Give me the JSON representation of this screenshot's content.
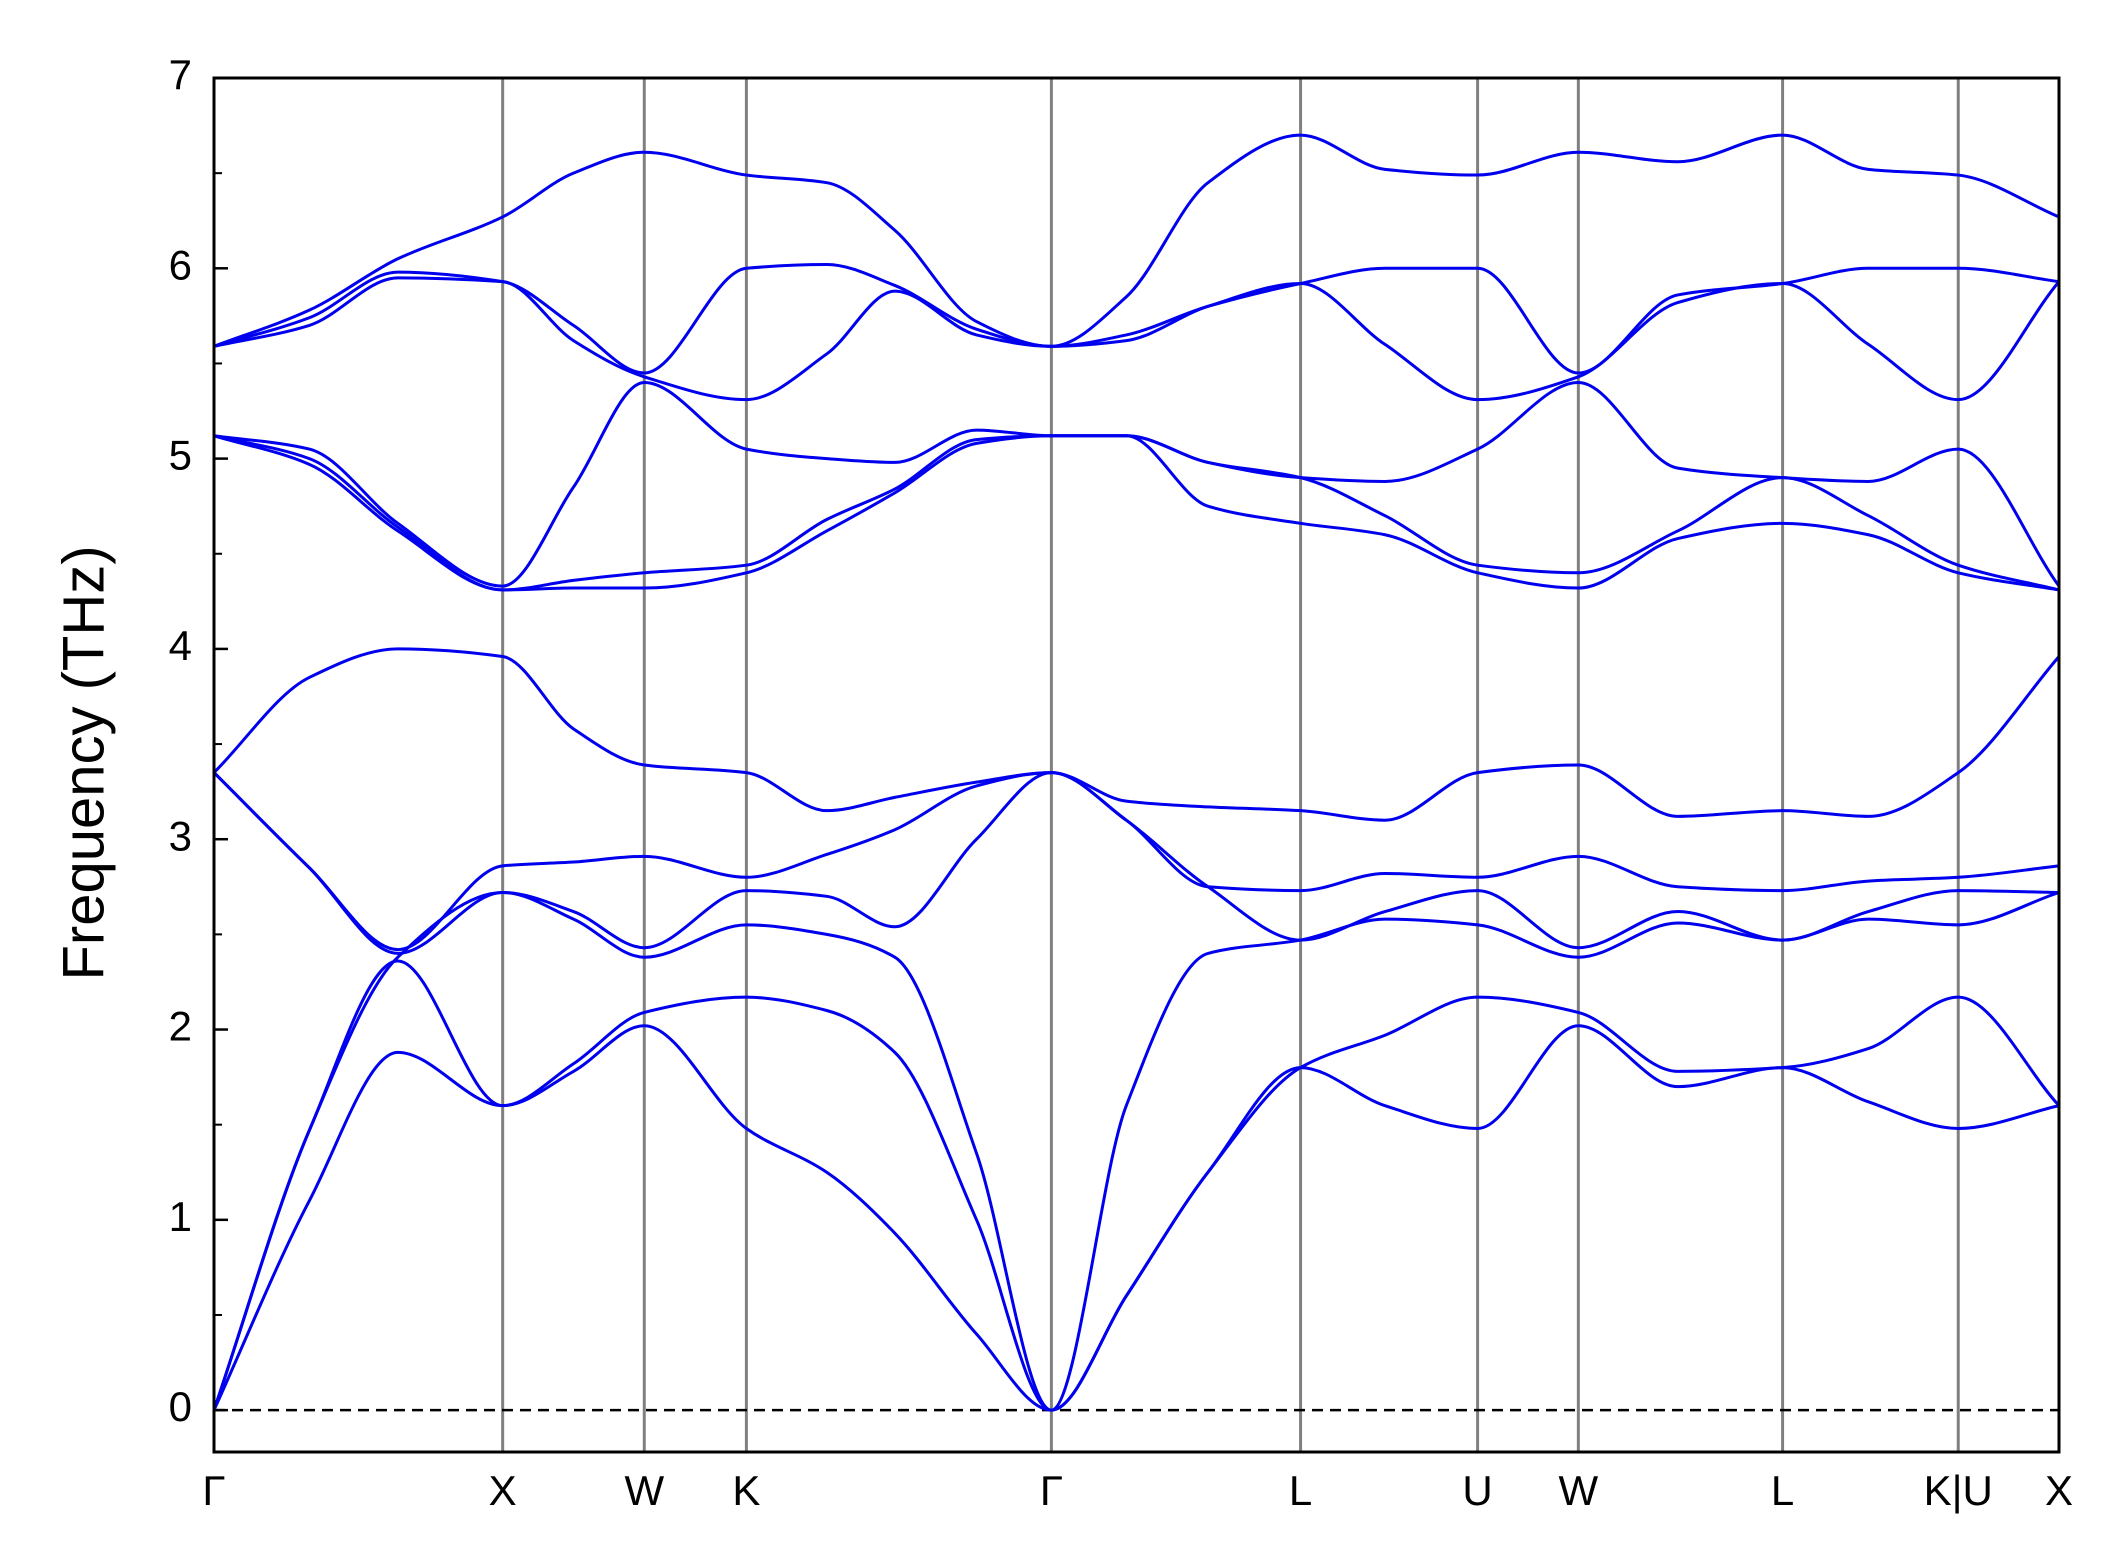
{
  "chart_data": {
    "type": "line",
    "ylabel": "Frequency (THz)",
    "color": "#0000ee",
    "kline_color": "#808080",
    "hline": 0,
    "xlim": [
      0,
      13.55
    ],
    "ylim": [
      -0.22,
      7
    ],
    "yticks": [
      0,
      1,
      2,
      3,
      4,
      5,
      6,
      7
    ],
    "yticks_minor": [
      0.5,
      1.5,
      2.5,
      3.5,
      4.5,
      5.5,
      6.5
    ],
    "xticks": [
      {
        "value": 0,
        "label": "Γ"
      },
      {
        "value": 2.12,
        "label": "X"
      },
      {
        "value": 3.16,
        "label": "W"
      },
      {
        "value": 3.91,
        "label": "K"
      },
      {
        "value": 6.15,
        "label": "Γ"
      },
      {
        "value": 7.98,
        "label": "L"
      },
      {
        "value": 9.28,
        "label": "U"
      },
      {
        "value": 10.02,
        "label": "W"
      },
      {
        "value": 11.52,
        "label": "L"
      },
      {
        "value": 12.81,
        "label": "K|U"
      },
      {
        "value": 13.55,
        "label": "X"
      }
    ],
    "x": [
      0,
      0.7,
      1.35,
      2.12,
      2.64,
      3.16,
      3.91,
      4.5,
      5.0,
      5.6,
      6.15,
      6.7,
      7.3,
      7.98,
      8.6,
      9.28,
      10.02,
      10.75,
      11.52,
      12.15,
      12.81,
      13.55
    ],
    "series": [
      {
        "values": [
          0,
          1.1,
          1.88,
          1.6,
          1.78,
          2.02,
          1.48,
          1.25,
          0.93,
          0.4,
          0,
          0.6,
          1.25,
          1.8,
          1.6,
          1.48,
          2.02,
          1.7,
          1.8,
          1.62,
          1.48,
          1.6
        ]
      },
      {
        "values": [
          0,
          1.47,
          2.36,
          1.6,
          1.82,
          2.09,
          2.17,
          2.1,
          1.88,
          1.0,
          0,
          0.6,
          1.25,
          1.8,
          1.97,
          2.17,
          2.09,
          1.78,
          1.8,
          1.9,
          2.17,
          1.6
        ]
      },
      {
        "values": [
          0,
          1.47,
          2.38,
          2.72,
          2.58,
          2.38,
          2.55,
          2.5,
          2.38,
          1.35,
          0,
          1.6,
          2.4,
          2.47,
          2.58,
          2.55,
          2.38,
          2.56,
          2.47,
          2.58,
          2.55,
          2.72
        ]
      },
      {
        "values": [
          3.35,
          2.85,
          2.4,
          2.72,
          2.62,
          2.43,
          2.73,
          2.7,
          2.54,
          3.0,
          3.35,
          3.1,
          2.75,
          2.47,
          2.62,
          2.73,
          2.43,
          2.62,
          2.47,
          2.62,
          2.73,
          2.72
        ]
      },
      {
        "values": [
          3.35,
          2.85,
          2.42,
          2.86,
          2.88,
          2.91,
          2.8,
          2.92,
          3.05,
          3.28,
          3.35,
          3.1,
          2.75,
          2.73,
          2.82,
          2.8,
          2.91,
          2.75,
          2.73,
          2.78,
          2.8,
          2.86
        ]
      },
      {
        "values": [
          3.35,
          3.85,
          4.0,
          3.96,
          3.58,
          3.39,
          3.35,
          3.15,
          3.22,
          3.3,
          3.35,
          3.2,
          3.17,
          3.15,
          3.1,
          3.35,
          3.39,
          3.12,
          3.15,
          3.12,
          3.35,
          3.96
        ]
      },
      {
        "values": [
          5.12,
          4.97,
          4.62,
          4.31,
          4.32,
          4.32,
          4.4,
          4.62,
          4.82,
          5.08,
          5.12,
          5.12,
          4.75,
          4.66,
          4.6,
          4.4,
          4.32,
          4.58,
          4.66,
          4.6,
          4.4,
          4.31
        ]
      },
      {
        "values": [
          5.12,
          5.0,
          4.64,
          4.31,
          4.36,
          4.4,
          4.44,
          4.68,
          4.84,
          5.1,
          5.12,
          5.12,
          4.98,
          4.9,
          4.7,
          4.44,
          4.4,
          4.62,
          4.9,
          4.7,
          4.44,
          4.31
        ]
      },
      {
        "values": [
          5.12,
          5.05,
          4.66,
          4.33,
          4.85,
          5.4,
          5.05,
          5.0,
          4.98,
          5.15,
          5.12,
          5.12,
          4.98,
          4.9,
          4.88,
          5.05,
          5.4,
          4.95,
          4.9,
          4.88,
          5.05,
          4.33
        ]
      },
      {
        "values": [
          5.59,
          5.7,
          5.95,
          5.93,
          5.62,
          5.43,
          5.31,
          5.55,
          5.88,
          5.65,
          5.59,
          5.62,
          5.8,
          5.92,
          5.6,
          5.31,
          5.43,
          5.82,
          5.92,
          5.6,
          5.31,
          5.93
        ]
      },
      {
        "values": [
          5.59,
          5.74,
          5.98,
          5.93,
          5.7,
          5.45,
          6.0,
          6.02,
          5.91,
          5.68,
          5.59,
          5.65,
          5.8,
          5.92,
          6.0,
          6.0,
          5.45,
          5.86,
          5.92,
          6.0,
          6.0,
          5.93
        ]
      },
      {
        "values": [
          5.59,
          5.78,
          6.05,
          6.27,
          6.5,
          6.61,
          6.49,
          6.45,
          6.2,
          5.72,
          5.59,
          5.85,
          6.45,
          6.7,
          6.52,
          6.49,
          6.61,
          6.56,
          6.7,
          6.52,
          6.49,
          6.27
        ]
      }
    ]
  }
}
